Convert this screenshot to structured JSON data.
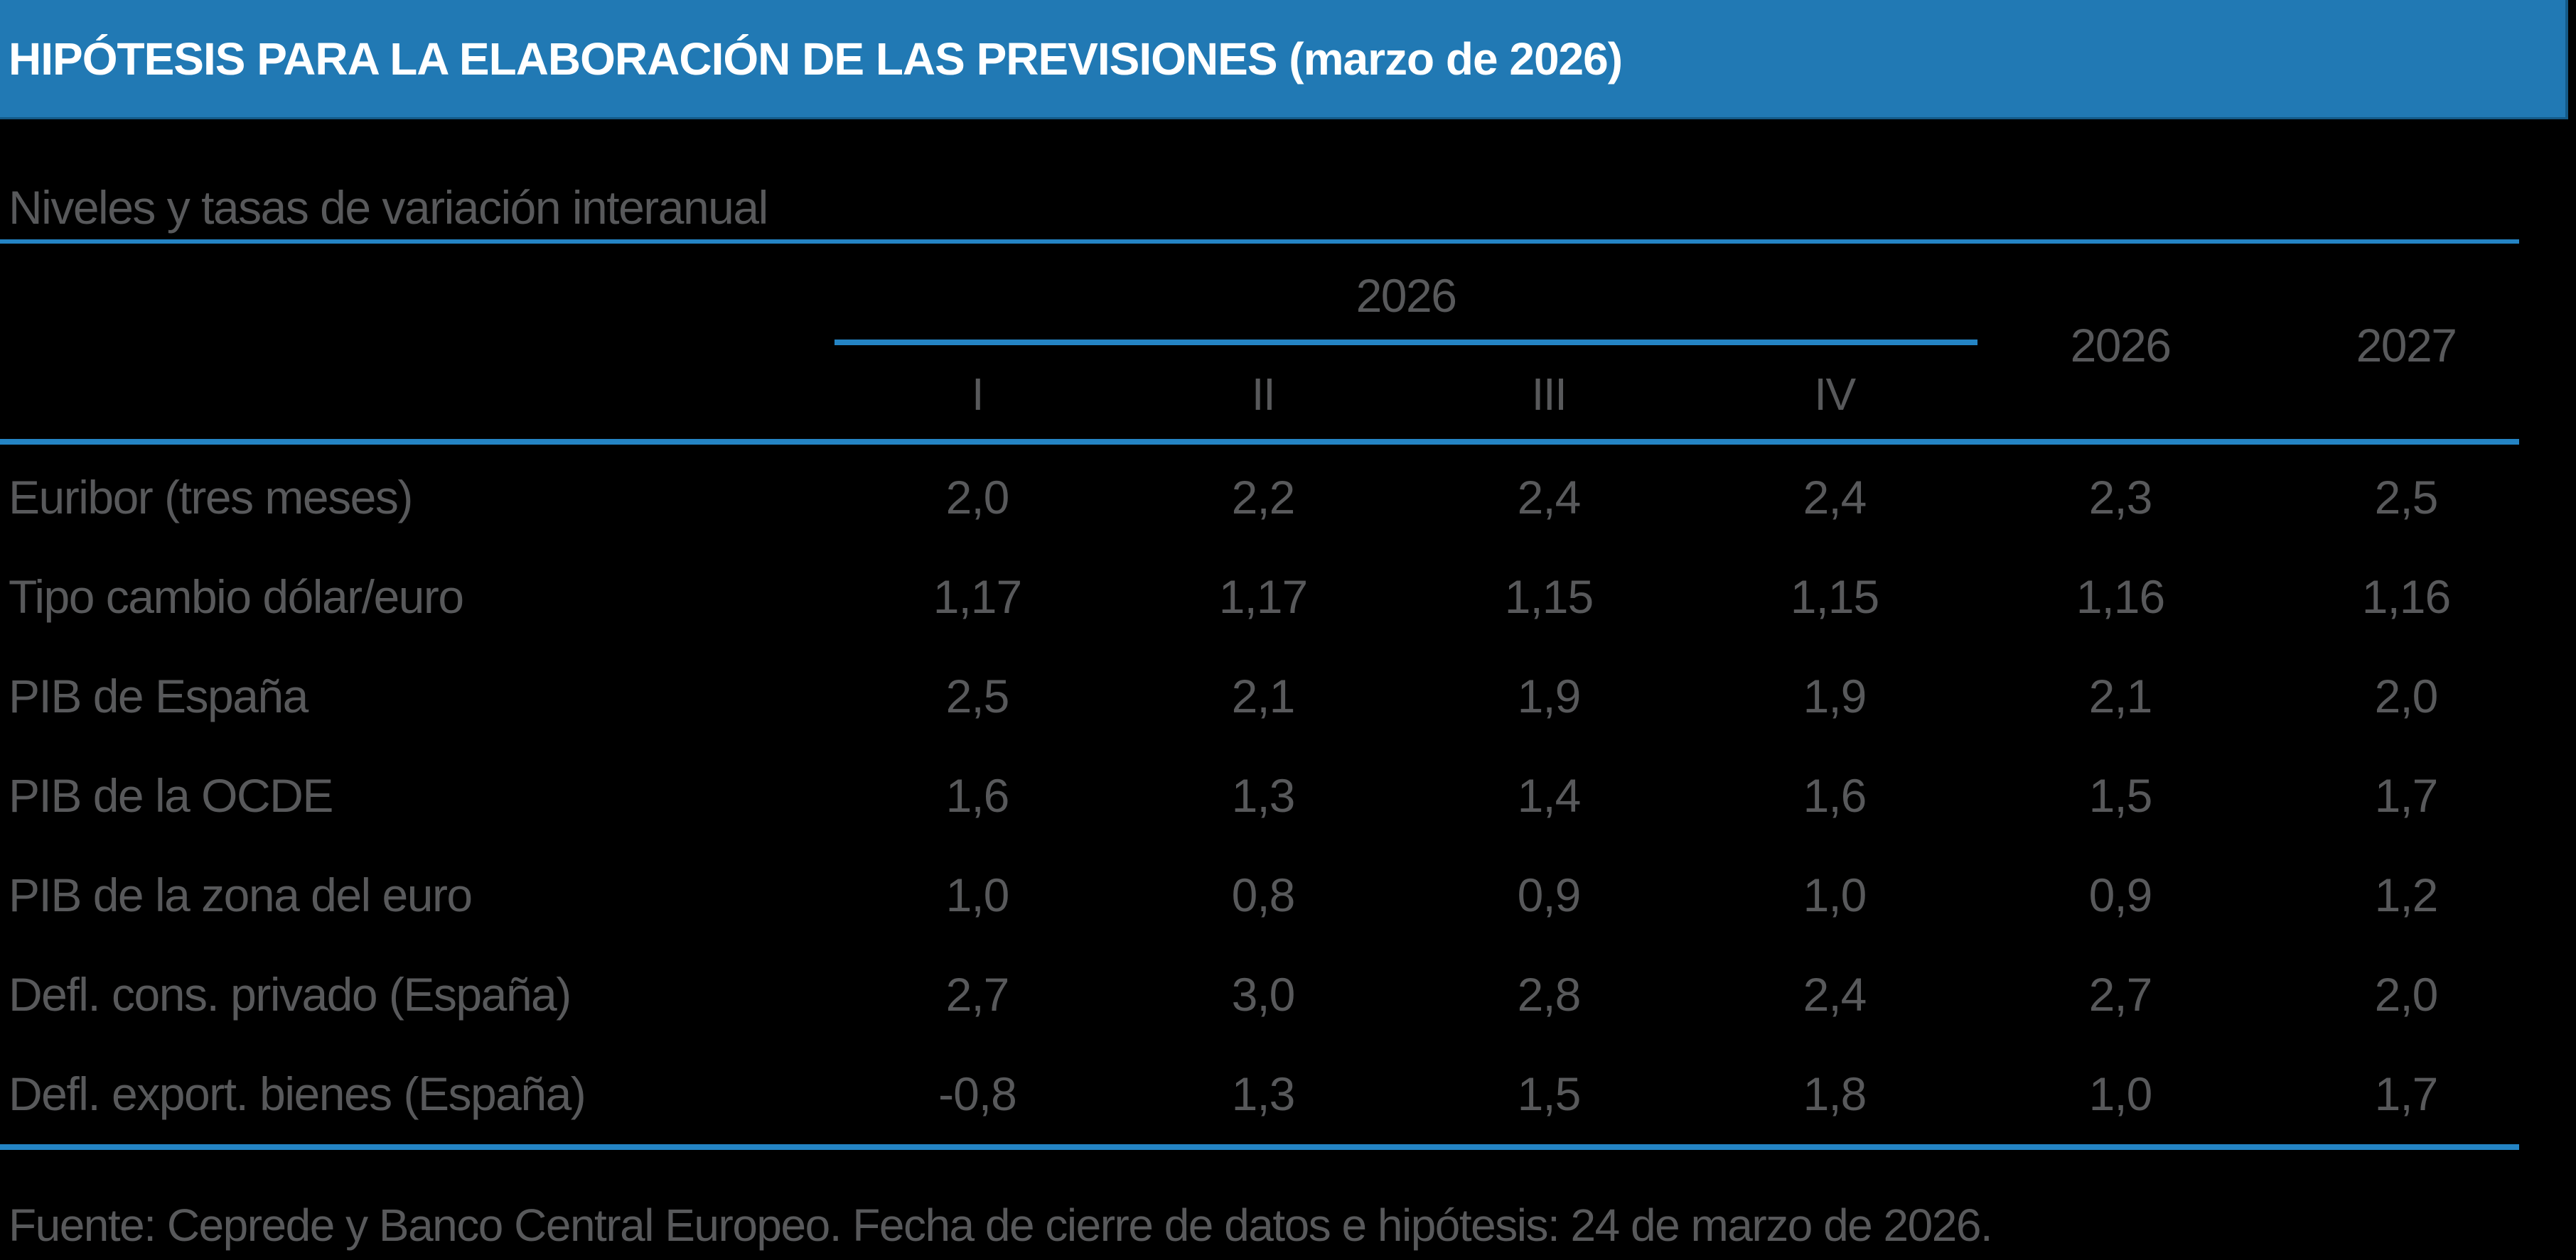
{
  "chart_data": {
    "type": "table",
    "title": "HIPÓTESIS PARA LA ELABORACIÓN DE LAS PREVISIONES (marzo de 2026)",
    "subtitle": "Niveles y tasas de variación interanual",
    "group_header": "2026",
    "quarter_labels": [
      "I",
      "II",
      "III",
      "IV"
    ],
    "annual_labels": [
      "2026",
      "2027"
    ],
    "columns": [
      "2026-I",
      "2026-II",
      "2026-III",
      "2026-IV",
      "2026",
      "2027"
    ],
    "rows": [
      {
        "label": "Euribor (tres meses)",
        "values": [
          "2,0",
          "2,2",
          "2,4",
          "2,4",
          "2,3",
          "2,5"
        ]
      },
      {
        "label": "Tipo cambio dólar/euro",
        "values": [
          "1,17",
          "1,17",
          "1,15",
          "1,15",
          "1,16",
          "1,16"
        ]
      },
      {
        "label": "PIB de España",
        "values": [
          "2,5",
          "2,1",
          "1,9",
          "1,9",
          "2,1",
          "2,0"
        ]
      },
      {
        "label": "PIB de la OCDE",
        "values": [
          "1,6",
          "1,3",
          "1,4",
          "1,6",
          "1,5",
          "1,7"
        ]
      },
      {
        "label": "PIB de la zona del euro",
        "values": [
          "1,0",
          "0,8",
          "0,9",
          "1,0",
          "0,9",
          "1,2"
        ]
      },
      {
        "label": "Defl. cons. privado (España)",
        "values": [
          "2,7",
          "3,0",
          "2,8",
          "2,4",
          "2,7",
          "2,0"
        ]
      },
      {
        "label": "Defl. export. bienes (España)",
        "values": [
          "-0,8",
          "1,3",
          "1,5",
          "1,8",
          "1,0",
          "1,7"
        ]
      }
    ],
    "footer": "Fuente: Ceprede y Banco Central Europeo. Fecha de cierre de datos e hipótesis: 24 de marzo de 2026.",
    "layout_hints": {
      "grid": "off",
      "legend": "none",
      "decimal_separator": ","
    }
  },
  "colors": {
    "title_bar_bg": "#2179B4",
    "title_text": "#FFFFFF",
    "rule_blue": "#2484C4",
    "body_text_gray": "#58595B",
    "background": "#000000"
  }
}
